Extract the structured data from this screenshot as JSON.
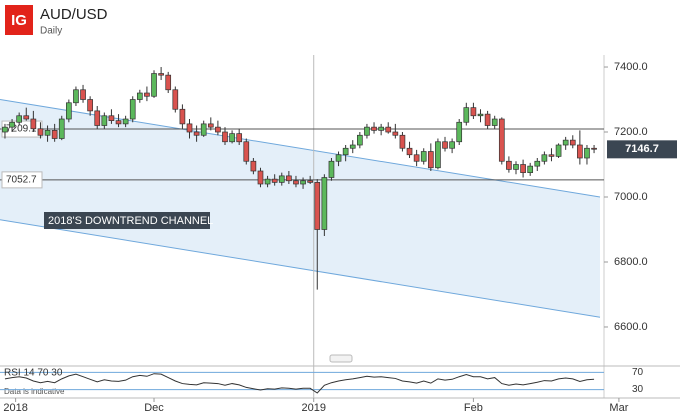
{
  "chart_data": {
    "type": "candlestick",
    "logo": "IG",
    "title": "AUD/USD",
    "subtitle": "Daily",
    "annotation": "2018'S DOWNTREND CHANNEL",
    "footnote": "Data is indicative",
    "up_color": "#5cb85c",
    "down_color": "#d9534f",
    "ylim": [
      6523,
      7437
    ],
    "yticks": [
      {
        "value": 7400,
        "label": "7400.0"
      },
      {
        "value": 7200,
        "label": "7200.0"
      },
      {
        "value": 7000,
        "label": "7000.0"
      },
      {
        "value": 6800,
        "label": "6800.0"
      },
      {
        "value": 6600,
        "label": "6600.0"
      }
    ],
    "xlim": [
      -0.7,
      84.4
    ],
    "xticks": [
      {
        "value": 1.5,
        "label": "2018"
      },
      {
        "value": 21,
        "label": "Dec"
      },
      {
        "value": 43.5,
        "label": "2019"
      },
      {
        "value": 66,
        "label": "Feb"
      },
      {
        "value": 86.5,
        "label": "Mar"
      }
    ],
    "levels": [
      7209.1,
      7052.7
    ],
    "last_price": 7146.7,
    "channel": {
      "upper": [
        7300,
        7000
      ],
      "lower": [
        6930,
        6630
      ]
    },
    "ohlc": [
      [
        7200,
        7225,
        7180,
        7215
      ],
      [
        7215,
        7240,
        7200,
        7230
      ],
      [
        7230,
        7260,
        7220,
        7250
      ],
      [
        7250,
        7275,
        7235,
        7240
      ],
      [
        7240,
        7265,
        7200,
        7210
      ],
      [
        7210,
        7230,
        7180,
        7190
      ],
      [
        7190,
        7220,
        7170,
        7205
      ],
      [
        7205,
        7225,
        7170,
        7180
      ],
      [
        7180,
        7250,
        7175,
        7240
      ],
      [
        7240,
        7300,
        7230,
        7290
      ],
      [
        7290,
        7340,
        7280,
        7330
      ],
      [
        7330,
        7345,
        7290,
        7300
      ],
      [
        7300,
        7310,
        7250,
        7265
      ],
      [
        7265,
        7280,
        7210,
        7220
      ],
      [
        7220,
        7260,
        7210,
        7250
      ],
      [
        7250,
        7270,
        7225,
        7235
      ],
      [
        7235,
        7255,
        7215,
        7225
      ],
      [
        7225,
        7250,
        7215,
        7240
      ],
      [
        7240,
        7310,
        7230,
        7300
      ],
      [
        7300,
        7330,
        7290,
        7320
      ],
      [
        7320,
        7340,
        7295,
        7310
      ],
      [
        7310,
        7390,
        7305,
        7380
      ],
      [
        7380,
        7400,
        7360,
        7375
      ],
      [
        7375,
        7385,
        7320,
        7330
      ],
      [
        7330,
        7340,
        7260,
        7270
      ],
      [
        7270,
        7285,
        7210,
        7225
      ],
      [
        7225,
        7240,
        7180,
        7200
      ],
      [
        7200,
        7220,
        7170,
        7190
      ],
      [
        7190,
        7235,
        7185,
        7225
      ],
      [
        7225,
        7245,
        7205,
        7215
      ],
      [
        7215,
        7235,
        7190,
        7200
      ],
      [
        7200,
        7215,
        7160,
        7170
      ],
      [
        7170,
        7205,
        7165,
        7195
      ],
      [
        7195,
        7210,
        7160,
        7170
      ],
      [
        7170,
        7180,
        7100,
        7110
      ],
      [
        7110,
        7120,
        7070,
        7080
      ],
      [
        7080,
        7090,
        7030,
        7040
      ],
      [
        7040,
        7065,
        7030,
        7055
      ],
      [
        7055,
        7070,
        7035,
        7045
      ],
      [
        7045,
        7075,
        7035,
        7065
      ],
      [
        7065,
        7080,
        7040,
        7050
      ],
      [
        7050,
        7065,
        7030,
        7040
      ],
      [
        7040,
        7060,
        7025,
        7050
      ],
      [
        7050,
        7065,
        7040,
        7045
      ],
      [
        7045,
        7055,
        6715,
        6900
      ],
      [
        6900,
        7070,
        6880,
        7060
      ],
      [
        7060,
        7120,
        7050,
        7110
      ],
      [
        7110,
        7140,
        7095,
        7130
      ],
      [
        7130,
        7160,
        7110,
        7150
      ],
      [
        7150,
        7175,
        7135,
        7160
      ],
      [
        7160,
        7200,
        7150,
        7190
      ],
      [
        7190,
        7225,
        7180,
        7215
      ],
      [
        7215,
        7230,
        7195,
        7205
      ],
      [
        7205,
        7225,
        7190,
        7215
      ],
      [
        7215,
        7230,
        7195,
        7200
      ],
      [
        7200,
        7225,
        7180,
        7190
      ],
      [
        7190,
        7200,
        7140,
        7150
      ],
      [
        7150,
        7170,
        7120,
        7130
      ],
      [
        7130,
        7145,
        7095,
        7110
      ],
      [
        7110,
        7150,
        7100,
        7140
      ],
      [
        7140,
        7165,
        7080,
        7090
      ],
      [
        7090,
        7180,
        7085,
        7170
      ],
      [
        7170,
        7185,
        7140,
        7150
      ],
      [
        7150,
        7180,
        7135,
        7170
      ],
      [
        7170,
        7240,
        7160,
        7230
      ],
      [
        7230,
        7290,
        7220,
        7275
      ],
      [
        7275,
        7290,
        7240,
        7250
      ],
      [
        7250,
        7270,
        7230,
        7255
      ],
      [
        7255,
        7265,
        7210,
        7220
      ],
      [
        7220,
        7250,
        7210,
        7240
      ],
      [
        7240,
        7245,
        7100,
        7110
      ],
      [
        7110,
        7125,
        7075,
        7085
      ],
      [
        7085,
        7110,
        7070,
        7100
      ],
      [
        7100,
        7115,
        7060,
        7075
      ],
      [
        7075,
        7105,
        7065,
        7095
      ],
      [
        7095,
        7120,
        7080,
        7110
      ],
      [
        7110,
        7140,
        7100,
        7130
      ],
      [
        7130,
        7150,
        7110,
        7125
      ],
      [
        7125,
        7165,
        7120,
        7160
      ],
      [
        7160,
        7185,
        7145,
        7175
      ],
      [
        7175,
        7190,
        7150,
        7160
      ],
      [
        7160,
        7205,
        7100,
        7120
      ],
      [
        7120,
        7160,
        7100,
        7150
      ],
      [
        7150,
        7160,
        7135,
        7147
      ]
    ],
    "rsi": {
      "label": "RSI 14 70 30",
      "color": "#333333",
      "ylim": [
        15,
        85
      ],
      "yticks": [
        70,
        30
      ],
      "values": [
        55,
        58,
        60,
        57,
        50,
        46,
        49,
        46,
        55,
        62,
        66,
        60,
        54,
        48,
        53,
        50,
        49,
        52,
        60,
        63,
        61,
        67,
        66,
        58,
        50,
        44,
        42,
        41,
        46,
        45,
        44,
        40,
        44,
        41,
        35,
        32,
        29,
        32,
        31,
        34,
        33,
        31,
        33,
        33,
        22,
        40,
        46,
        50,
        53,
        55,
        58,
        61,
        59,
        60,
        58,
        56,
        50,
        48,
        45,
        50,
        45,
        55,
        52,
        54,
        60,
        65,
        60,
        60,
        55,
        58,
        44,
        40,
        43,
        41,
        44,
        47,
        51,
        50,
        55,
        57,
        55,
        49,
        53,
        54
      ]
    }
  }
}
